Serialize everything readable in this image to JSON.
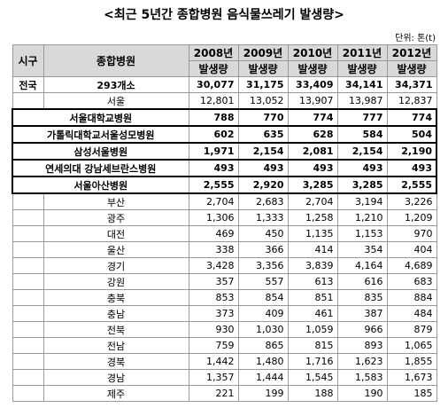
{
  "title": "<최근 5년간 종합병원 음식물쓰레기 발생량>",
  "unit": "단위: 톤(t)",
  "table": {
    "header": {
      "region": "시구",
      "hospital": "종합병원",
      "years": [
        "2008년",
        "2009년",
        "2010년",
        "2011년",
        "2012년"
      ],
      "measure": [
        "발생량",
        "발생량",
        "발생량",
        "발생량",
        "발생량"
      ]
    },
    "national": {
      "region": "전국",
      "label": "293개소",
      "values": [
        "30,077",
        "31,175",
        "33,409",
        "34,141",
        "34,371"
      ]
    },
    "seoul": {
      "label": "서울",
      "values": [
        "12,801",
        "13,052",
        "13,907",
        "13,987",
        "12,837"
      ]
    },
    "hospitals": [
      {
        "label": "서울대학교병원",
        "values": [
          "788",
          "770",
          "774",
          "777",
          "774"
        ]
      },
      {
        "label": "가톨릭대학교서울성모병원",
        "values": [
          "602",
          "635",
          "628",
          "584",
          "504"
        ]
      },
      {
        "label": "삼성서울병원",
        "values": [
          "1,971",
          "2,154",
          "2,081",
          "2,154",
          "2,190"
        ]
      },
      {
        "label": "연세의대 강남세브란스병원",
        "values": [
          "493",
          "493",
          "493",
          "493",
          "493"
        ]
      },
      {
        "label": "서울아산병원",
        "values": [
          "2,555",
          "2,920",
          "3,285",
          "3,285",
          "2,555"
        ]
      }
    ],
    "regions": [
      {
        "label": "부산",
        "values": [
          "2,704",
          "2,683",
          "2,704",
          "3,194",
          "3,226"
        ]
      },
      {
        "label": "광주",
        "values": [
          "1,306",
          "1,333",
          "1,258",
          "1,210",
          "1,209"
        ]
      },
      {
        "label": "대전",
        "values": [
          "469",
          "450",
          "1,135",
          "1,153",
          "970"
        ]
      },
      {
        "label": "울산",
        "values": [
          "338",
          "366",
          "414",
          "354",
          "404"
        ]
      },
      {
        "label": "경기",
        "values": [
          "3,428",
          "3,356",
          "3,839",
          "4,164",
          "4,689"
        ]
      },
      {
        "label": "강원",
        "values": [
          "357",
          "557",
          "613",
          "616",
          "683"
        ]
      },
      {
        "label": "충북",
        "values": [
          "853",
          "854",
          "851",
          "835",
          "884"
        ]
      },
      {
        "label": "충남",
        "values": [
          "373",
          "409",
          "461",
          "387",
          "484"
        ]
      },
      {
        "label": "전북",
        "values": [
          "930",
          "1,030",
          "1,059",
          "966",
          "879"
        ]
      },
      {
        "label": "전남",
        "values": [
          "759",
          "865",
          "815",
          "893",
          "1,065"
        ]
      },
      {
        "label": "경북",
        "values": [
          "1,442",
          "1,480",
          "1,716",
          "1,623",
          "1,855"
        ]
      },
      {
        "label": "경남",
        "values": [
          "1,357",
          "1,444",
          "1,545",
          "1,583",
          "1,673"
        ]
      },
      {
        "label": "제주",
        "values": [
          "221",
          "199",
          "188",
          "190",
          "185"
        ]
      }
    ]
  }
}
